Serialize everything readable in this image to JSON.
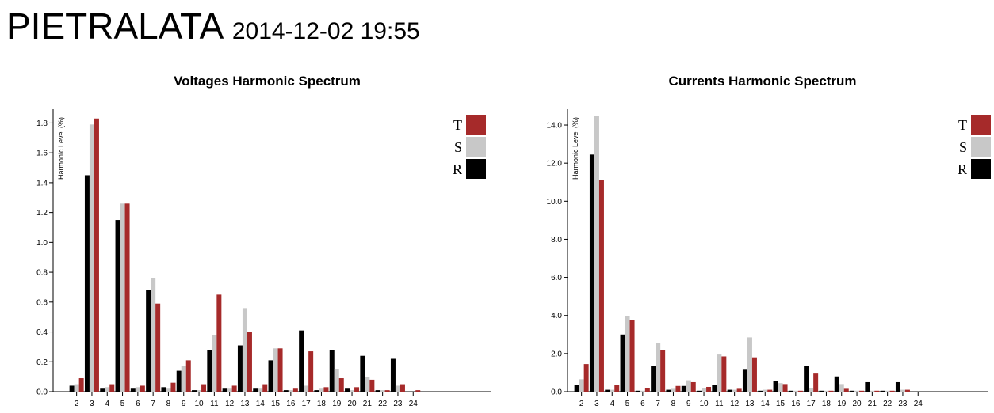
{
  "header": {
    "station": "PIETRALATA",
    "datetime": "2014-12-02 19:55"
  },
  "colors": {
    "R": "#000000",
    "S": "#c8c8c8",
    "T": "#a62a2a"
  },
  "chart_data": [
    {
      "type": "bar",
      "title": "Voltages Harmonic Spectrum",
      "xlabel": "",
      "ylabel": "Harmonic Level (%)",
      "ylim": [
        0,
        1.85
      ],
      "yticks": [
        "0.0",
        "0.2",
        "0.4",
        "0.6",
        "0.8",
        "1.0",
        "1.2",
        "1.4",
        "1.6",
        "1.8"
      ],
      "grid": false,
      "legend_position": "top-right",
      "legend": [
        "T",
        "S",
        "R"
      ],
      "categories": [
        "2",
        "3",
        "4",
        "5",
        "6",
        "7",
        "8",
        "9",
        "10",
        "11",
        "12",
        "13",
        "14",
        "15",
        "16",
        "17",
        "18",
        "19",
        "20",
        "21",
        "22",
        "23",
        "24"
      ],
      "series": [
        {
          "name": "R",
          "values": [
            0.04,
            1.45,
            0.02,
            1.15,
            0.02,
            0.68,
            0.03,
            0.14,
            0.01,
            0.28,
            0.02,
            0.31,
            0.02,
            0.21,
            0.01,
            0.41,
            0.01,
            0.28,
            0.02,
            0.24,
            0.01,
            0.22,
            0.0
          ]
        },
        {
          "name": "S",
          "values": [
            0.05,
            1.79,
            0.03,
            1.26,
            0.03,
            0.76,
            0.02,
            0.17,
            0.01,
            0.38,
            0.02,
            0.56,
            0.02,
            0.29,
            0.01,
            0.04,
            0.02,
            0.15,
            0.01,
            0.1,
            0.01,
            0.04,
            0.0
          ]
        },
        {
          "name": "T",
          "values": [
            0.09,
            1.83,
            0.05,
            1.26,
            0.04,
            0.59,
            0.06,
            0.21,
            0.05,
            0.65,
            0.04,
            0.4,
            0.05,
            0.29,
            0.02,
            0.27,
            0.03,
            0.09,
            0.03,
            0.08,
            0.01,
            0.05,
            0.01
          ]
        }
      ]
    },
    {
      "type": "bar",
      "title": "Currents Harmonic Spectrum",
      "xlabel": "",
      "ylabel": "Harmonic Level (%)",
      "ylim": [
        0,
        14.5
      ],
      "yticks": [
        "0.0",
        "2.0",
        "4.0",
        "6.0",
        "8.0",
        "10.0",
        "12.0",
        "14.0"
      ],
      "grid": false,
      "legend_position": "top-right",
      "legend": [
        "T",
        "S",
        "R"
      ],
      "categories": [
        "2",
        "3",
        "4",
        "5",
        "6",
        "7",
        "8",
        "9",
        "10",
        "11",
        "12",
        "13",
        "14",
        "15",
        "16",
        "17",
        "18",
        "19",
        "20",
        "21",
        "22",
        "23",
        "24"
      ],
      "series": [
        {
          "name": "R",
          "values": [
            0.35,
            12.45,
            0.1,
            3.0,
            0.05,
            1.35,
            0.1,
            0.3,
            0.05,
            0.35,
            0.1,
            1.15,
            0.05,
            0.55,
            0.05,
            1.35,
            0.05,
            0.8,
            0.05,
            0.5,
            0.05,
            0.5,
            0.0
          ]
        },
        {
          "name": "S",
          "values": [
            0.65,
            14.5,
            0.1,
            3.95,
            0.05,
            2.55,
            0.15,
            0.6,
            0.2,
            1.95,
            0.1,
            2.85,
            0.1,
            0.45,
            0.05,
            0.2,
            0.05,
            0.4,
            0.05,
            0.05,
            0.05,
            0.1,
            0.0
          ]
        },
        {
          "name": "T",
          "values": [
            1.45,
            11.1,
            0.35,
            3.75,
            0.2,
            2.2,
            0.3,
            0.5,
            0.25,
            1.85,
            0.15,
            1.8,
            0.1,
            0.4,
            0.05,
            0.95,
            0.05,
            0.15,
            0.05,
            0.05,
            0.05,
            0.1,
            0.0
          ]
        }
      ]
    }
  ]
}
